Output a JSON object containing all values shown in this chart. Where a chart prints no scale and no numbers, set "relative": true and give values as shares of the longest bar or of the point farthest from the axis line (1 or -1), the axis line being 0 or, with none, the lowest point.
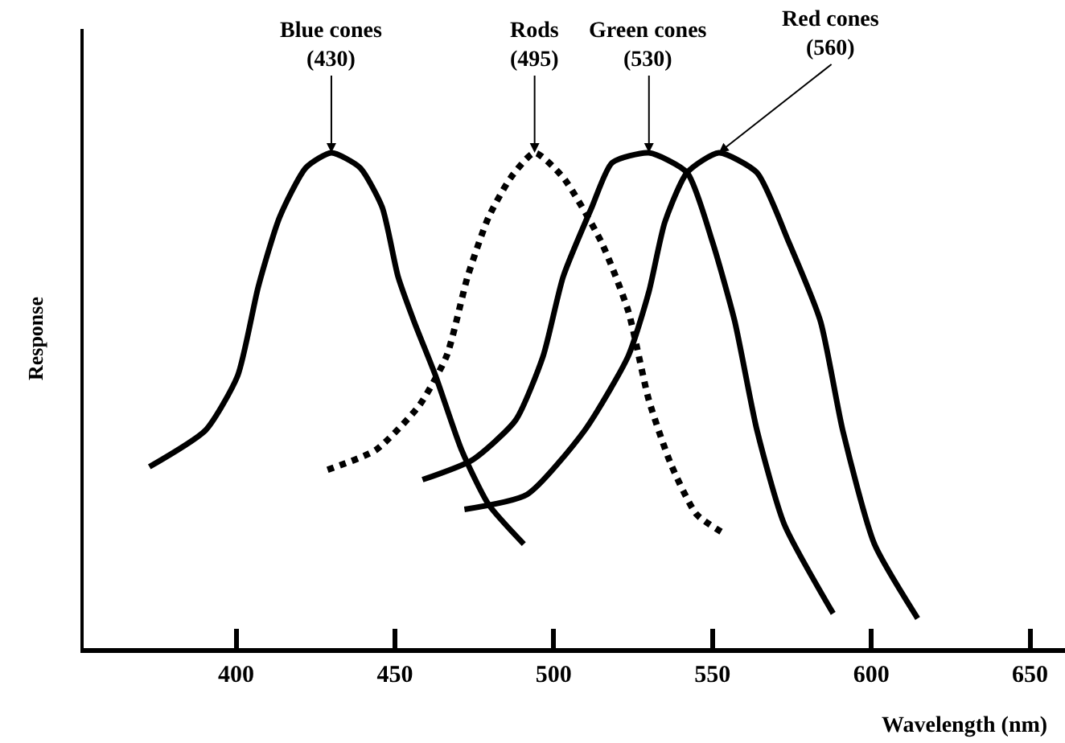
{
  "chart_data": {
    "type": "line",
    "relative": true,
    "xlabel": "Wavelength (nm)",
    "ylabel": "Response",
    "xlim": [
      352,
      661
    ],
    "xticks": [
      400,
      450,
      500,
      550,
      600,
      650
    ],
    "marker": "none",
    "series": [
      {
        "color": "#000000",
        "line_style": "solid",
        "x": [
          372.7,
          390.4,
          400.5,
          407,
          413.7,
          422,
          430,
          439,
          446,
          451,
          456,
          462.8,
          471,
          479.5,
          490.6
        ],
        "values": [
          0.366,
          0.44,
          0.55,
          0.73,
          0.87,
          0.97,
          1.0,
          0.97,
          0.89,
          0.75,
          0.66,
          0.55,
          0.4,
          0.29,
          0.21
        ]
      },
      {
        "color": "#000000",
        "line_style": "dotted",
        "x": [
          428.8,
          444,
          457.7,
          466.3,
          472.9,
          479.5,
          486.5,
          494,
          503,
          515,
          523.5,
          530,
          537,
          545,
          554
        ],
        "values": [
          0.36,
          0.4,
          0.49,
          0.59,
          0.75,
          0.87,
          0.95,
          1.0,
          0.95,
          0.82,
          0.68,
          0.5,
          0.37,
          0.27,
          0.23
        ]
      },
      {
        "color": "#000000",
        "line_style": "solid",
        "x": [
          458.7,
          474.4,
          488,
          496.7,
          503,
          512,
          518.4,
          530,
          542,
          550,
          557,
          564,
          572.6,
          588
        ],
        "values": [
          0.34,
          0.38,
          0.46,
          0.59,
          0.75,
          0.89,
          0.98,
          1.0,
          0.96,
          0.82,
          0.66,
          0.44,
          0.25,
          0.07
        ]
      },
      {
        "color": "#000000",
        "line_style": "solid",
        "x": [
          471.9,
          491.6,
          509.8,
          523.5,
          530,
          535,
          542,
          552,
          564,
          574,
          584,
          591,
          601,
          614.6
        ],
        "values": [
          0.28,
          0.31,
          0.44,
          0.59,
          0.72,
          0.86,
          0.96,
          1.0,
          0.96,
          0.82,
          0.66,
          0.44,
          0.21,
          0.06
        ]
      }
    ],
    "annotations": [
      {
        "text": "Blue cones\n(430)",
        "x": 430,
        "y": 1.0
      },
      {
        "text": "Rods\n(495)",
        "x": 494,
        "y": 1.0
      },
      {
        "text": "Green cones\n(530)",
        "x": 530,
        "y": 1.0
      },
      {
        "text": "Red cones\n(560)",
        "x": 552,
        "y": 1.0
      }
    ]
  }
}
